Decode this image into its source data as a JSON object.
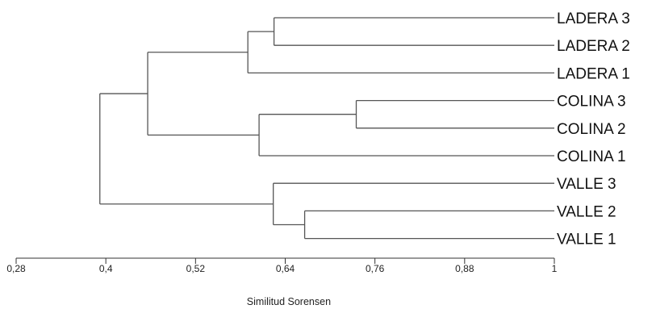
{
  "dendrogram": {
    "leaves": [
      "LADERA 3",
      "LADERA 2",
      "LADERA 1",
      "COLINA 3",
      "COLINA 2",
      "COLINA 1",
      "VALLE 3",
      "VALLE 2",
      "VALLE 1"
    ],
    "merges": [
      {
        "a": "leaf:0",
        "b": "leaf:1",
        "similarity": 0.625
      },
      {
        "a": "node:0",
        "b": "leaf:2",
        "similarity": 0.59
      },
      {
        "a": "leaf:3",
        "b": "leaf:4",
        "similarity": 0.735
      },
      {
        "a": "node:2",
        "b": "leaf:5",
        "similarity": 0.605
      },
      {
        "a": "node:1",
        "b": "node:3",
        "similarity": 0.456
      },
      {
        "a": "leaf:7",
        "b": "leaf:8",
        "similarity": 0.666
      },
      {
        "a": "leaf:6",
        "b": "node:5",
        "similarity": 0.624
      },
      {
        "a": "node:4",
        "b": "node:6",
        "similarity": 0.392
      }
    ]
  },
  "axis": {
    "ticks": [
      "0,28",
      "0,4",
      "0,52",
      "0,64",
      "0,76",
      "0,88",
      "1"
    ],
    "range": [
      0.28,
      1.0
    ],
    "title": "Similitud Sorensen"
  },
  "style": {
    "link_color": "#555555",
    "text_color": "#111111",
    "background": "#ffffff"
  }
}
